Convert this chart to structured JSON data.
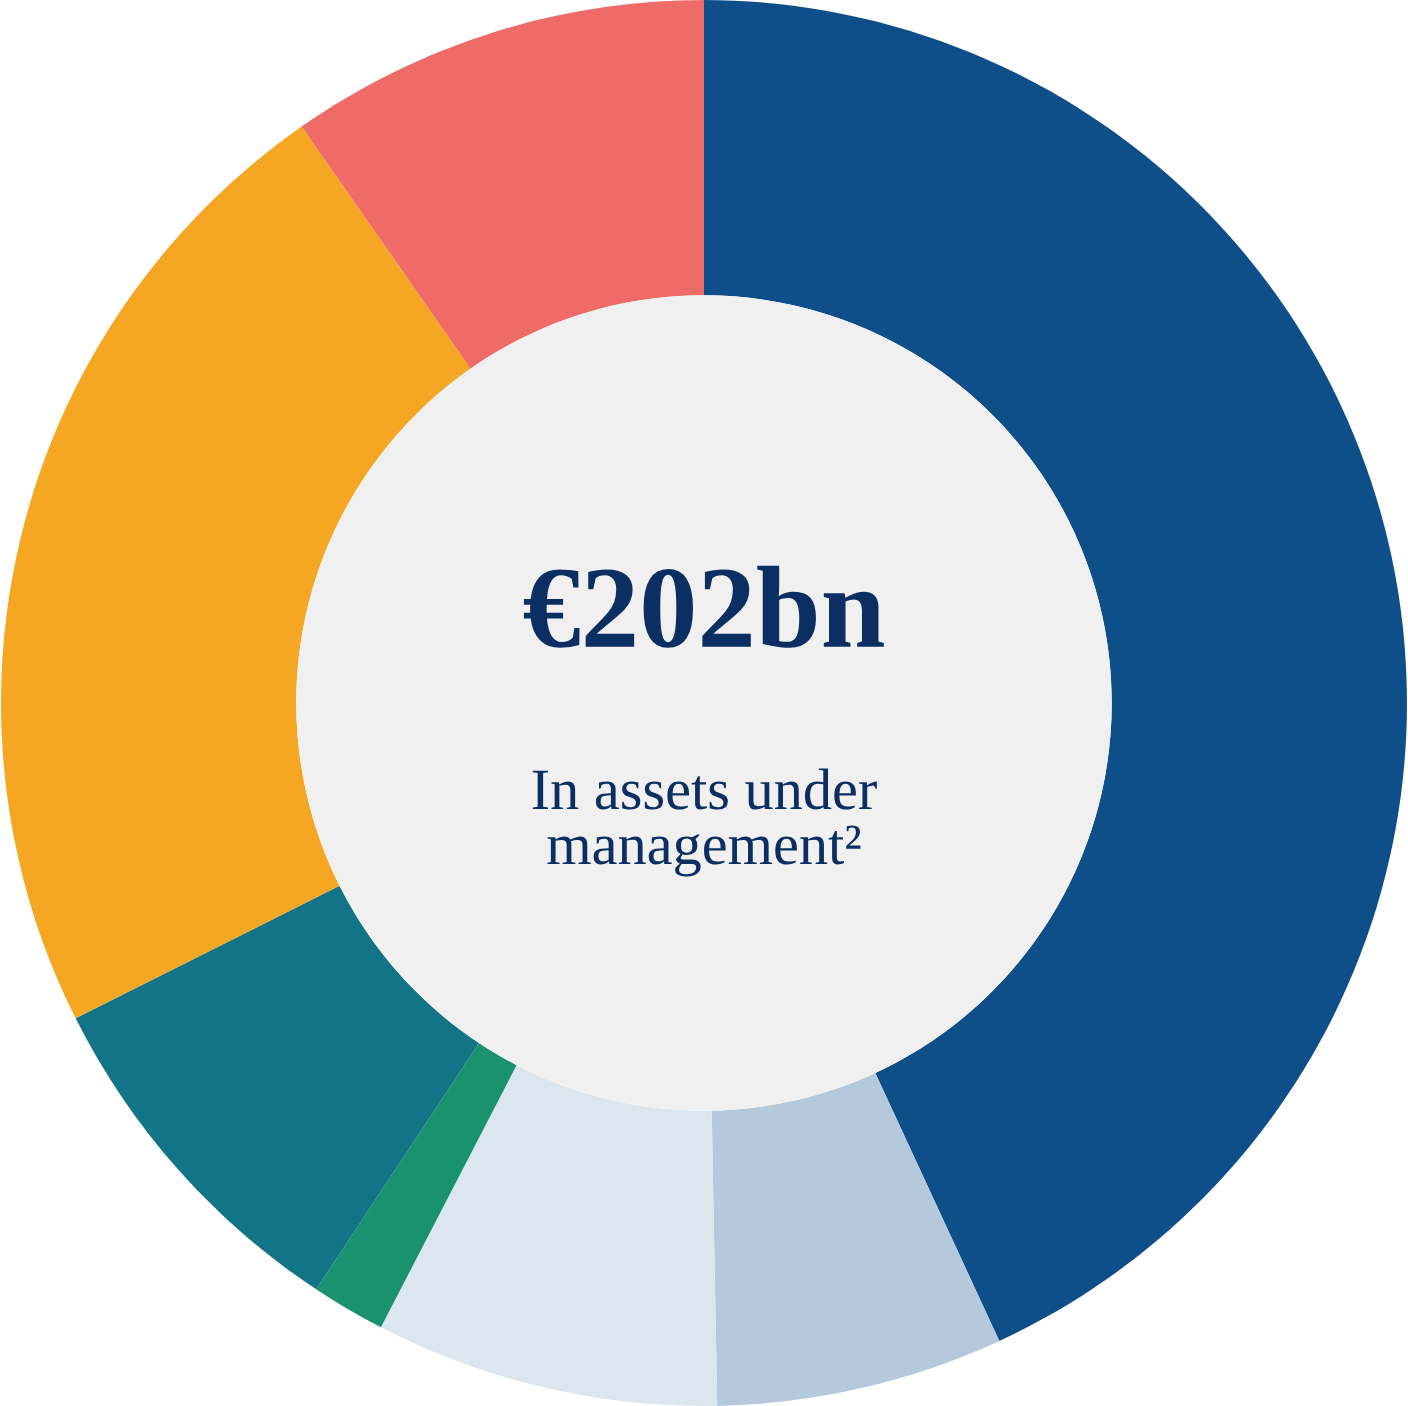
{
  "chart_data": {
    "type": "donut",
    "categories": [
      null,
      null,
      null,
      null,
      null,
      null,
      null
    ],
    "values": [
      43.1,
      6.6,
      7.9,
      1.7,
      8.3,
      22.7,
      9.7
    ],
    "colors": [
      "#0e4f8a",
      "#b5c9dc",
      "#dce6ee",
      "#1a9270",
      "#137488",
      "#f5a623",
      "#ee6b67"
    ],
    "annotations": [
      "€202bn",
      "In assets under\nmanagement²"
    ]
  }
}
